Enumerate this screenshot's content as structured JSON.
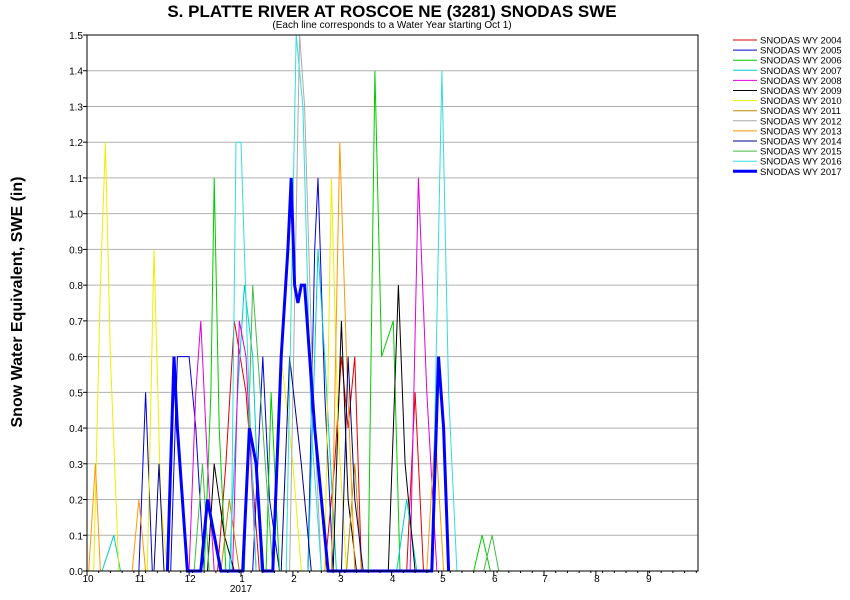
{
  "chart_data": {
    "type": "line",
    "title": "S. PLATTE RIVER AT ROSCOE NE (3281) SNODAS SWE",
    "subtitle": "(Each line corresponds to a Water Year starting Oct 1)",
    "ylabel": "Snow Water Equivalent, SWE (in)",
    "xlabel": "",
    "x_axis": {
      "unit": "month",
      "ticks": [
        "10",
        "11",
        "12",
        "1",
        "2",
        "3",
        "4",
        "5",
        "6",
        "7",
        "8",
        "9"
      ],
      "year_label": "2017",
      "range": [
        "Oct 1",
        "Sep 30"
      ]
    },
    "y_axis": {
      "range": [
        0,
        1.5
      ],
      "ticks": [
        "0.0",
        "0.1",
        "0.2",
        "0.3",
        "0.4",
        "0.5",
        "0.6",
        "0.7",
        "0.8",
        "0.9",
        "1.0",
        "1.1",
        "1.2",
        "1.3",
        "1.4",
        "1.5"
      ]
    },
    "grid": "horizontal",
    "legend_position": "right",
    "series": [
      {
        "name": "SNODAS WY 2004",
        "color": "#e00000",
        "width": 1,
        "points": [
          [
            "Dec 18",
            0
          ],
          [
            "Dec 23",
            0.3
          ],
          [
            "Dec 28",
            0.7
          ],
          [
            "Jan 4",
            0.5
          ],
          [
            "Jan 12",
            0
          ],
          [
            "Feb 20",
            0
          ],
          [
            "Feb 26",
            0.3
          ],
          [
            "Mar 2",
            0.6
          ],
          [
            "Mar 6",
            0.4
          ],
          [
            "Mar 10",
            0.6
          ],
          [
            "Mar 14",
            0
          ],
          [
            "Apr 10",
            0
          ],
          [
            "Apr 15",
            0.5
          ],
          [
            "Apr 20",
            0
          ]
        ]
      },
      {
        "name": "SNODAS WY 2005",
        "color": "#0000dd",
        "width": 1,
        "points": [
          [
            "Nov 1",
            0
          ],
          [
            "Nov 5",
            0.5
          ],
          [
            "Nov 9",
            0
          ],
          [
            "Nov 20",
            0
          ],
          [
            "Nov 24",
            0.6
          ],
          [
            "Dec 1",
            0.6
          ],
          [
            "Dec 5",
            0.4
          ],
          [
            "Dec 10",
            0
          ],
          [
            "Jan 8",
            0
          ],
          [
            "Jan 14",
            0.6
          ],
          [
            "Jan 18",
            0.2
          ],
          [
            "Jan 24",
            0
          ],
          [
            "Feb 10",
            0
          ],
          [
            "Feb 14",
            0.9
          ],
          [
            "Feb 16",
            1.1
          ],
          [
            "Feb 20",
            0.5
          ],
          [
            "Feb 25",
            0
          ]
        ]
      },
      {
        "name": "SNODAS WY 2006",
        "color": "#00cc00",
        "width": 1,
        "points": [
          [
            "Dec 10",
            0
          ],
          [
            "Dec 14",
            0.5
          ],
          [
            "Dec 16",
            1.1
          ],
          [
            "Dec 19",
            0.4
          ],
          [
            "Dec 23",
            0
          ],
          [
            "Jan 16",
            0
          ],
          [
            "Jan 19",
            0.5
          ],
          [
            "Jan 24",
            0
          ],
          [
            "Mar 18",
            0
          ],
          [
            "Mar 22",
            1.4
          ],
          [
            "Mar 26",
            0.6
          ],
          [
            "Apr 2",
            0.7
          ],
          [
            "Apr 6",
            0
          ],
          [
            "May 20",
            0
          ],
          [
            "May 25",
            0.1
          ],
          [
            "May 30",
            0
          ]
        ]
      },
      {
        "name": "SNODAS WY 2007",
        "color": "#00cccc",
        "width": 1,
        "points": [
          [
            "Oct 10",
            0
          ],
          [
            "Oct 17",
            0.1
          ],
          [
            "Oct 21",
            0
          ],
          [
            "Dec 25",
            0
          ],
          [
            "Dec 30",
            0.5
          ],
          [
            "Jan 3",
            0.8
          ],
          [
            "Jan 8",
            0.6
          ],
          [
            "Jan 13",
            0
          ],
          [
            "Feb 10",
            0
          ],
          [
            "Feb 16",
            0.9
          ],
          [
            "Feb 20",
            0.6
          ],
          [
            "Feb 27",
            0
          ],
          [
            "Apr 4",
            0
          ],
          [
            "Apr 10",
            0.2
          ],
          [
            "Apr 16",
            0
          ]
        ]
      },
      {
        "name": "SNODAS WY 2008",
        "color": "#dd00dd",
        "width": 1,
        "points": [
          [
            "Dec 1",
            0
          ],
          [
            "Dec 5",
            0.5
          ],
          [
            "Dec 8",
            0.7
          ],
          [
            "Dec 12",
            0.3
          ],
          [
            "Dec 16",
            0
          ],
          [
            "Dec 27",
            0
          ],
          [
            "Dec 31",
            0.7
          ],
          [
            "Jan 4",
            0.6
          ],
          [
            "Jan 10",
            0
          ],
          [
            "Apr 12",
            0
          ],
          [
            "Apr 17",
            1.1
          ],
          [
            "Apr 22",
            0.5
          ],
          [
            "Apr 28",
            0
          ]
        ]
      },
      {
        "name": "SNODAS WY 2009",
        "color": "#000000",
        "width": 1,
        "points": [
          [
            "Dec 12",
            0
          ],
          [
            "Dec 16",
            0.3
          ],
          [
            "Dec 22",
            0.1
          ],
          [
            "Dec 28",
            0
          ],
          [
            "Feb 25",
            0
          ],
          [
            "Mar 2",
            0.7
          ],
          [
            "Mar 6",
            0.2
          ],
          [
            "Mar 11",
            0
          ],
          [
            "Mar 30",
            0
          ],
          [
            "Apr 5",
            0.8
          ],
          [
            "Apr 9",
            0.3
          ],
          [
            "Apr 15",
            0
          ]
        ]
      },
      {
        "name": "SNODAS WY 2010",
        "color": "#eeee00",
        "width": 1,
        "points": [
          [
            "Oct 5",
            0
          ],
          [
            "Oct 9",
            0.8
          ],
          [
            "Oct 12",
            1.2
          ],
          [
            "Oct 15",
            0.6
          ],
          [
            "Oct 20",
            0
          ],
          [
            "Nov 6",
            0
          ],
          [
            "Nov 10",
            0.9
          ],
          [
            "Nov 14",
            0.2
          ],
          [
            "Nov 18",
            0
          ],
          [
            "Jan 20",
            0
          ],
          [
            "Jan 25",
            0.6
          ],
          [
            "Feb 1",
            0.3
          ],
          [
            "Feb 6",
            0
          ],
          [
            "Feb 20",
            0
          ],
          [
            "Feb 24",
            1.1
          ],
          [
            "Feb 28",
            0.4
          ],
          [
            "Mar 5",
            0
          ]
        ]
      },
      {
        "name": "SNODAS WY 2011",
        "color": "#bb8800",
        "width": 1,
        "points": [
          [
            "Dec 20",
            0
          ],
          [
            "Dec 25",
            0.2
          ],
          [
            "Dec 31",
            0
          ],
          [
            "Mar 5",
            0
          ],
          [
            "Mar 10",
            0.3
          ],
          [
            "Mar 14",
            0
          ]
        ]
      },
      {
        "name": "SNODAS WY 2012",
        "color": "#aaaaaa",
        "width": 1,
        "points": [
          [
            "Jan 30",
            0
          ],
          [
            "Feb 5",
            1.5
          ],
          [
            "Feb 8",
            1.3
          ],
          [
            "Feb 13",
            0.5
          ],
          [
            "Feb 18",
            0
          ]
        ]
      },
      {
        "name": "SNODAS WY 2013",
        "color": "#ff9900",
        "width": 1,
        "points": [
          [
            "Oct 2",
            0
          ],
          [
            "Oct 6",
            0.3
          ],
          [
            "Oct 9",
            0
          ],
          [
            "Oct 28",
            0
          ],
          [
            "Nov 1",
            0.2
          ],
          [
            "Nov 5",
            0
          ],
          [
            "Feb 24",
            0
          ],
          [
            "Mar 1",
            1.2
          ],
          [
            "Mar 5",
            0.6
          ],
          [
            "Mar 10",
            0
          ],
          [
            "Apr 22",
            0
          ],
          [
            "Apr 27",
            0.4
          ],
          [
            "May 2",
            0
          ]
        ]
      },
      {
        "name": "SNODAS WY 2014",
        "color": "#000088",
        "width": 1,
        "points": [
          [
            "Nov 10",
            0
          ],
          [
            "Nov 13",
            0.3
          ],
          [
            "Nov 16",
            0
          ],
          [
            "Jan 25",
            0
          ],
          [
            "Jan 30",
            0.6
          ],
          [
            "Feb 6",
            0.3
          ],
          [
            "Feb 12",
            0
          ],
          [
            "Mar 2",
            0
          ],
          [
            "Mar 6",
            0.6
          ],
          [
            "Mar 10",
            0.2
          ],
          [
            "Mar 15",
            0
          ]
        ]
      },
      {
        "name": "SNODAS WY 2015",
        "color": "#44bb44",
        "width": 1,
        "points": [
          [
            "Dec 4",
            0
          ],
          [
            "Dec 9",
            0.3
          ],
          [
            "Dec 13",
            0
          ],
          [
            "Jan 3",
            0
          ],
          [
            "Jan 8",
            0.8
          ],
          [
            "Jan 14",
            0.4
          ],
          [
            "Jan 20",
            0
          ],
          [
            "May 26",
            0
          ],
          [
            "May 31",
            0.1
          ],
          [
            "Jun 4",
            0
          ]
        ]
      },
      {
        "name": "SNODAS WY 2016",
        "color": "#33dddd",
        "width": 1,
        "points": [
          [
            "Dec 26",
            0
          ],
          [
            "Dec 29",
            1.2
          ],
          [
            "Jan 1",
            1.2
          ],
          [
            "Jan 5",
            0.6
          ],
          [
            "Jan 10",
            0
          ],
          [
            "Jan 28",
            0
          ],
          [
            "Feb 3",
            1.5
          ],
          [
            "Feb 7",
            1.3
          ],
          [
            "Feb 12",
            0.4
          ],
          [
            "Feb 18",
            0
          ],
          [
            "Apr 25",
            0
          ],
          [
            "May 1",
            1.4
          ],
          [
            "May 5",
            0.5
          ],
          [
            "May 10",
            0
          ]
        ]
      },
      {
        "name": "SNODAS WY 2017",
        "color": "#0000ff",
        "width": 3,
        "points": [
          [
            "Nov 18",
            0
          ],
          [
            "Nov 22",
            0.6
          ],
          [
            "Nov 24",
            0.4
          ],
          [
            "Nov 27",
            0.2
          ],
          [
            "Nov 30",
            0
          ],
          [
            "Dec 8",
            0
          ],
          [
            "Dec 12",
            0.2
          ],
          [
            "Dec 16",
            0.1
          ],
          [
            "Dec 20",
            0
          ],
          [
            "Jan 2",
            0
          ],
          [
            "Jan 6",
            0.4
          ],
          [
            "Jan 10",
            0.3
          ],
          [
            "Jan 14",
            0
          ],
          [
            "Jan 20",
            0
          ],
          [
            "Jan 25",
            0.6
          ],
          [
            "Jan 29",
            0.9
          ],
          [
            "Jan 31",
            1.1
          ],
          [
            "Feb 2",
            0.8
          ],
          [
            "Feb 4",
            0.75
          ],
          [
            "Feb 6",
            0.8
          ],
          [
            "Feb 8",
            0.8
          ],
          [
            "Feb 11",
            0.6
          ],
          [
            "Feb 14",
            0.4
          ],
          [
            "Feb 18",
            0.2
          ],
          [
            "Feb 22",
            0
          ],
          [
            "Apr 25",
            0
          ],
          [
            "Apr 29",
            0.6
          ],
          [
            "May 2",
            0.4
          ],
          [
            "May 5",
            0
          ]
        ]
      }
    ]
  }
}
